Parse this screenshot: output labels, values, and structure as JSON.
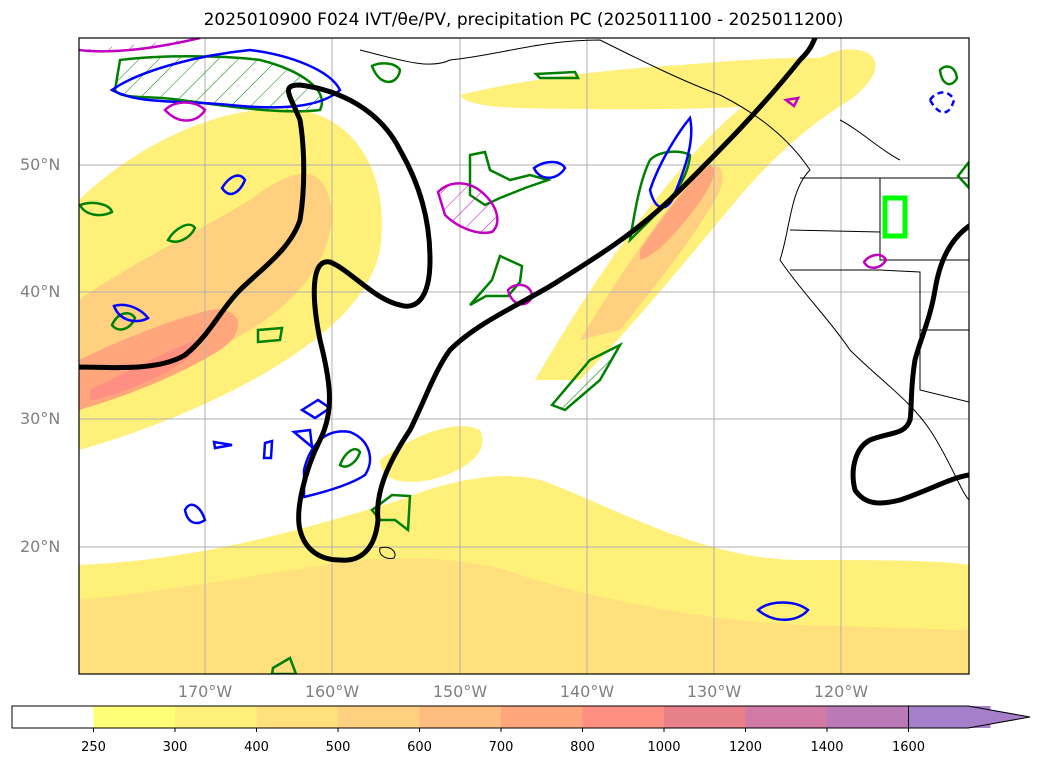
{
  "title": "2025010900 F024 IVT/θe/PV, precipitation PC (2025011100 - 2025011200)",
  "map": {
    "lat_labels": [
      "50°N",
      "40°N",
      "30°N",
      "20°N"
    ],
    "lon_labels": [
      "170°W",
      "160°W",
      "150°W",
      "140°W",
      "130°W",
      "120°W"
    ],
    "contour_colors": {
      "theta_e": "#000000",
      "pv_green": "#008000",
      "pv_blue": "#0000ff",
      "pv_magenta": "#c000c0",
      "highlight": "#00ff00"
    }
  },
  "colorbar": {
    "ticks": [
      "250",
      "300",
      "400",
      "500",
      "600",
      "700",
      "800",
      "1000",
      "1200",
      "1400",
      "1600"
    ],
    "colors": [
      "#ffffff",
      "#ffff77",
      "#fff07a",
      "#ffe07d",
      "#ffd07f",
      "#ffbd80",
      "#ffa67d",
      "#ff8f80",
      "#e8808a",
      "#d07aa5",
      "#ba7ab8",
      "#a57fc9"
    ]
  }
}
